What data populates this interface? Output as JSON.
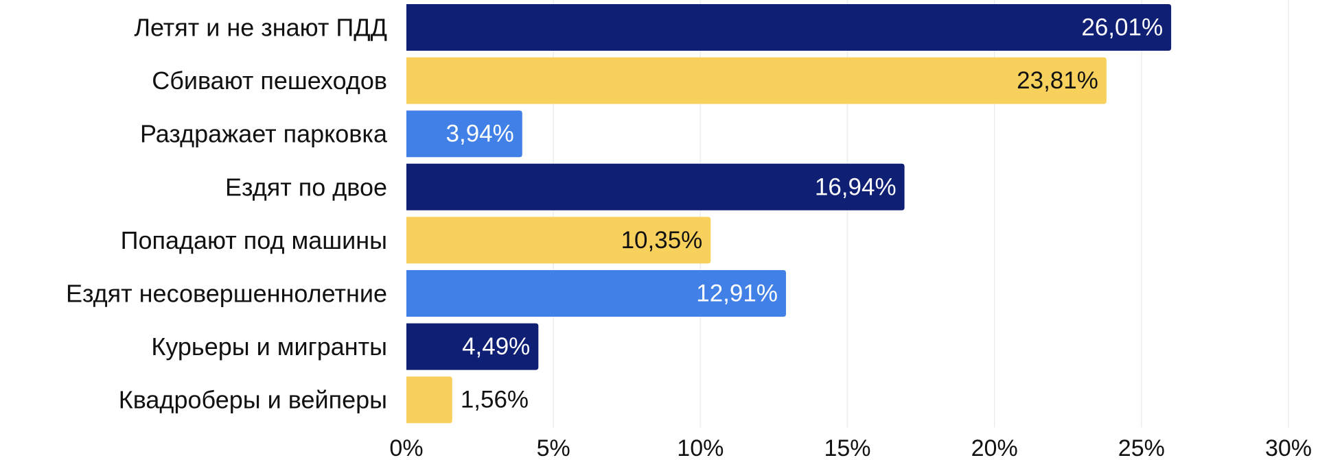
{
  "chart_data": {
    "type": "bar",
    "orientation": "horizontal",
    "title": "",
    "xlabel": "",
    "ylabel": "",
    "xlim": [
      0,
      30
    ],
    "grid": true,
    "ticks": [
      {
        "value": 0,
        "label": "0%"
      },
      {
        "value": 5,
        "label": "5%"
      },
      {
        "value": 10,
        "label": "10%"
      },
      {
        "value": 15,
        "label": "15%"
      },
      {
        "value": 20,
        "label": "20%"
      },
      {
        "value": 25,
        "label": "25%"
      },
      {
        "value": 30,
        "label": "30%"
      }
    ],
    "categories": [
      "Летят и не знают ПДД",
      "Сбивают пешеходов",
      "Раздражает парковка",
      "Ездят по двое",
      "Попадают под машины",
      "Ездят несовершеннолетние",
      "Курьеры и мигранты",
      "Квадроберы и вейперы"
    ],
    "values": [
      26.01,
      23.81,
      3.94,
      16.94,
      10.35,
      12.91,
      4.49,
      1.56
    ],
    "value_labels": [
      "26,01%",
      "23,81%",
      "3,94%",
      "16,94%",
      "10,35%",
      "12,91%",
      "4,49%",
      "1,56%"
    ],
    "bar_colors": [
      "#0f1f73",
      "#f8d15c",
      "#4180e6",
      "#0f1f73",
      "#f8d15c",
      "#4180e6",
      "#0f1f73",
      "#f8d15c"
    ],
    "label_colors": [
      "#ffffff",
      "#111111",
      "#ffffff",
      "#ffffff",
      "#111111",
      "#ffffff",
      "#ffffff",
      "#111111"
    ]
  }
}
